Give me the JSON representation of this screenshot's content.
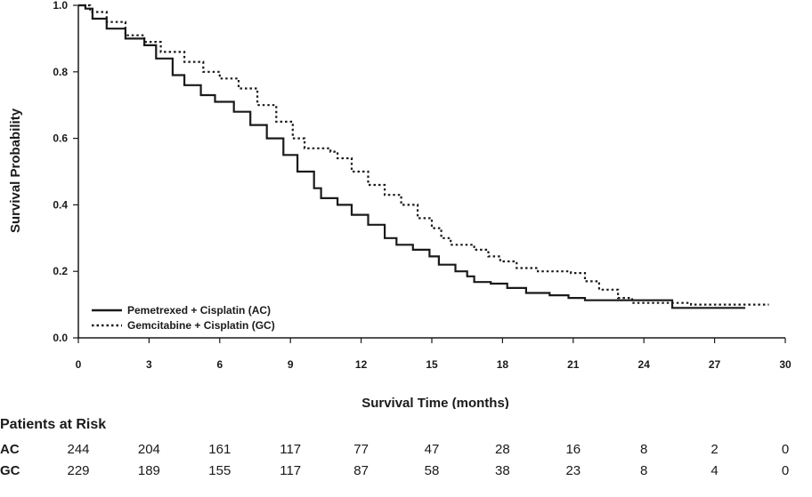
{
  "chart_data": {
    "type": "line",
    "subtype": "kaplan-meier step curve",
    "xlabel": "Survival Time (months)",
    "ylabel": "Survival Probability",
    "xlim": [
      0,
      30
    ],
    "ylim": [
      0,
      1.0
    ],
    "xticks": [
      0,
      3,
      6,
      9,
      12,
      15,
      18,
      21,
      24,
      27,
      30
    ],
    "xtick_labels": [
      "0",
      "3",
      "6",
      "9",
      "12",
      "15",
      "18",
      "21",
      "24",
      "27",
      "30"
    ],
    "yticks": [
      0,
      0.2,
      0.4,
      0.6,
      0.8,
      1.0
    ],
    "ytick_labels": [
      "0.0",
      "0.2",
      "0.4",
      "0.6",
      "0.8",
      "1.0"
    ],
    "grid": false,
    "legend_position": "bottom-left",
    "series": [
      {
        "name": "Pemetrexed + Cisplatin (AC)",
        "style": "solid",
        "points": [
          [
            0,
            1.0
          ],
          [
            0.3,
            0.99
          ],
          [
            0.6,
            0.96
          ],
          [
            1.2,
            0.93
          ],
          [
            2.0,
            0.9
          ],
          [
            2.8,
            0.88
          ],
          [
            3.3,
            0.84
          ],
          [
            4.0,
            0.79
          ],
          [
            4.5,
            0.76
          ],
          [
            5.2,
            0.73
          ],
          [
            5.8,
            0.71
          ],
          [
            6.6,
            0.68
          ],
          [
            7.3,
            0.64
          ],
          [
            8.0,
            0.6
          ],
          [
            8.7,
            0.55
          ],
          [
            9.3,
            0.5
          ],
          [
            10.0,
            0.45
          ],
          [
            10.3,
            0.42
          ],
          [
            11.0,
            0.4
          ],
          [
            11.6,
            0.37
          ],
          [
            12.3,
            0.34
          ],
          [
            13.0,
            0.3
          ],
          [
            13.5,
            0.28
          ],
          [
            14.2,
            0.265
          ],
          [
            14.9,
            0.245
          ],
          [
            15.3,
            0.22
          ],
          [
            16.0,
            0.2
          ],
          [
            16.5,
            0.185
          ],
          [
            16.8,
            0.168
          ],
          [
            17.5,
            0.163
          ],
          [
            18.2,
            0.15
          ],
          [
            19.0,
            0.135
          ],
          [
            20.0,
            0.128
          ],
          [
            20.8,
            0.12
          ],
          [
            21.5,
            0.113
          ],
          [
            23.0,
            0.113
          ],
          [
            25.2,
            0.09
          ],
          [
            28.3,
            0.09
          ]
        ]
      },
      {
        "name": "Gemcitabine + Cisplatin (GC)",
        "style": "dotted",
        "points": [
          [
            0,
            1.0
          ],
          [
            0.5,
            0.98
          ],
          [
            1.2,
            0.95
          ],
          [
            2.0,
            0.91
          ],
          [
            2.8,
            0.89
          ],
          [
            3.5,
            0.86
          ],
          [
            4.5,
            0.83
          ],
          [
            5.3,
            0.8
          ],
          [
            6.0,
            0.78
          ],
          [
            6.8,
            0.75
          ],
          [
            7.6,
            0.7
          ],
          [
            8.4,
            0.65
          ],
          [
            9.1,
            0.6
          ],
          [
            9.6,
            0.57
          ],
          [
            10.7,
            0.56
          ],
          [
            11.0,
            0.54
          ],
          [
            11.6,
            0.5
          ],
          [
            12.3,
            0.46
          ],
          [
            13.0,
            0.43
          ],
          [
            13.7,
            0.4
          ],
          [
            14.4,
            0.36
          ],
          [
            15.0,
            0.33
          ],
          [
            15.4,
            0.3
          ],
          [
            15.8,
            0.28
          ],
          [
            16.8,
            0.265
          ],
          [
            17.4,
            0.245
          ],
          [
            17.9,
            0.23
          ],
          [
            18.6,
            0.21
          ],
          [
            19.5,
            0.2
          ],
          [
            20.9,
            0.195
          ],
          [
            21.5,
            0.17
          ],
          [
            22.1,
            0.145
          ],
          [
            22.9,
            0.12
          ],
          [
            23.5,
            0.105
          ],
          [
            26.0,
            0.1
          ],
          [
            29.3,
            0.1
          ]
        ]
      }
    ],
    "at_risk": {
      "title": "Patients at Risk",
      "times": [
        0,
        3,
        6,
        9,
        12,
        15,
        18,
        21,
        24,
        27,
        30
      ],
      "rows": [
        {
          "label": "AC",
          "values": [
            "244",
            "204",
            "161",
            "117",
            "77",
            "47",
            "28",
            "16",
            "8",
            "2",
            "0"
          ]
        },
        {
          "label": "GC",
          "values": [
            "229",
            "189",
            "155",
            "117",
            "87",
            "58",
            "38",
            "23",
            "8",
            "4",
            "0"
          ]
        }
      ]
    }
  }
}
